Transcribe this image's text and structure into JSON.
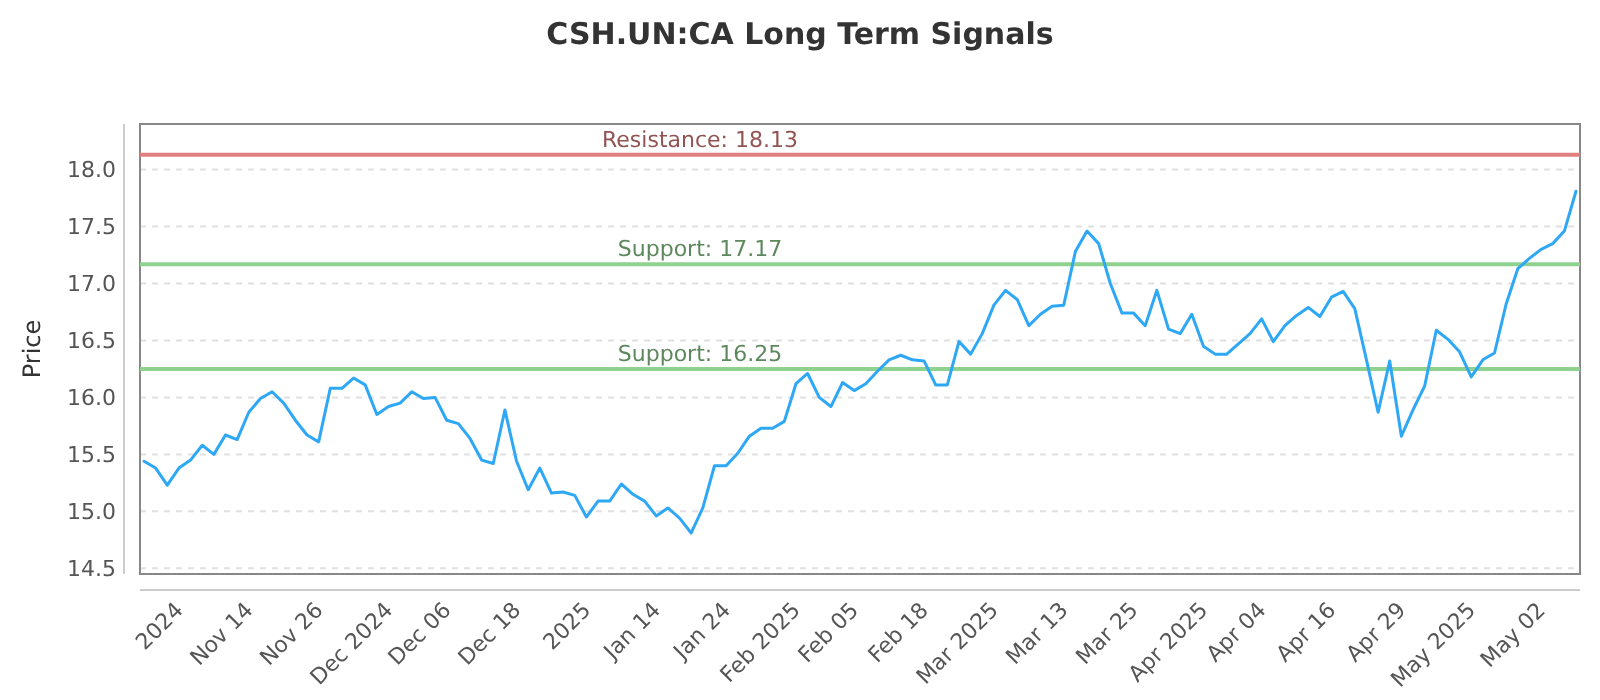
{
  "chart_data": {
    "type": "line",
    "title": "CSH.UN:CA Long Term Signals",
    "ylabel": "Price",
    "categories": [
      null,
      null,
      null,
      "2024",
      null,
      null,
      null,
      null,
      null,
      "Nov 14",
      null,
      null,
      null,
      null,
      null,
      "Nov 26",
      null,
      null,
      null,
      null,
      null,
      "Dec 2024",
      null,
      null,
      null,
      null,
      "Dec 06",
      null,
      null,
      null,
      null,
      null,
      "Dec 18",
      null,
      null,
      null,
      null,
      null,
      "2025",
      null,
      null,
      null,
      null,
      null,
      "Jan 14",
      null,
      null,
      null,
      null,
      null,
      "Jan 24",
      null,
      null,
      null,
      null,
      null,
      "Feb 2025",
      null,
      null,
      null,
      null,
      "Feb 05",
      null,
      null,
      null,
      null,
      null,
      "Feb 18",
      null,
      null,
      null,
      null,
      null,
      "Mar 2025",
      null,
      null,
      null,
      null,
      null,
      "Mar 13",
      null,
      null,
      null,
      null,
      null,
      "Mar 25",
      null,
      null,
      null,
      null,
      null,
      "Apr 2025",
      null,
      null,
      null,
      null,
      "Apr 04",
      null,
      null,
      null,
      null,
      null,
      "Apr 16",
      null,
      null,
      null,
      null,
      null,
      "Apr 29",
      null,
      null,
      null,
      null,
      null,
      "May 2025",
      null,
      null,
      null,
      null,
      null,
      "May 02",
      null,
      null,
      null
    ],
    "series": [
      {
        "color": "#2ea8f5",
        "values": [
          15.44,
          15.38,
          15.23,
          15.38,
          15.45,
          15.58,
          15.5,
          15.67,
          15.63,
          15.87,
          15.99,
          16.05,
          15.95,
          15.8,
          15.67,
          15.61,
          16.08,
          16.08,
          16.17,
          16.11,
          15.85,
          15.92,
          15.95,
          16.05,
          15.99,
          16.0,
          15.8,
          15.77,
          15.64,
          15.45,
          15.42,
          15.89,
          15.44,
          15.19,
          15.38,
          15.16,
          15.17,
          15.14,
          14.95,
          15.09,
          15.09,
          15.24,
          15.15,
          15.09,
          14.96,
          15.03,
          14.94,
          14.81,
          15.03,
          15.4,
          15.4,
          15.51,
          15.66,
          15.73,
          15.73,
          15.79,
          16.12,
          16.21,
          16.0,
          15.92,
          16.13,
          16.06,
          16.12,
          16.23,
          16.33,
          16.37,
          16.33,
          16.32,
          16.11,
          16.11,
          16.49,
          16.38,
          16.56,
          16.81,
          16.94,
          16.86,
          16.63,
          16.73,
          16.8,
          16.81,
          17.28,
          17.46,
          17.35,
          17.0,
          16.74,
          16.74,
          16.63,
          16.94,
          16.6,
          16.56,
          16.73,
          16.45,
          16.38,
          16.38,
          16.47,
          16.56,
          16.69,
          16.49,
          16.63,
          16.72,
          16.79,
          16.71,
          16.88,
          16.93,
          16.78,
          16.33,
          15.87,
          16.32,
          15.66,
          15.89,
          16.1,
          16.59,
          16.51,
          16.4,
          16.18,
          16.33,
          16.39,
          16.82,
          17.13,
          17.22,
          17.3,
          17.35,
          17.46,
          17.81
        ]
      }
    ],
    "ylim": [
      14.45,
      18.4
    ],
    "yticks": [
      {
        "value": 14.5,
        "label": "14.5"
      },
      {
        "value": 15,
        "label": "15.0"
      },
      {
        "value": 15.5,
        "label": "15.5"
      },
      {
        "value": 16,
        "label": "16.0"
      },
      {
        "value": 16.5,
        "label": "16.5"
      },
      {
        "value": 17,
        "label": "17.0"
      },
      {
        "value": 17.5,
        "label": "17.5"
      },
      {
        "value": 18,
        "label": "18.0"
      }
    ],
    "grid": "y",
    "marker": "none",
    "line_style": "solid",
    "ref_lines": [
      {
        "axis": "y",
        "value": 18.13,
        "label": "Resistance: 18.13",
        "color": "#e08080"
      },
      {
        "axis": "y",
        "value": 17.17,
        "label": "Support: 17.17",
        "color": "#8fd18f"
      },
      {
        "axis": "y",
        "value": 16.25,
        "label": "Support: 16.25",
        "color": "#8fd18f"
      }
    ]
  }
}
